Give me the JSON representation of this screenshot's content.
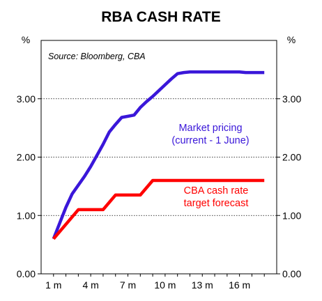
{
  "chart_data": {
    "type": "line",
    "title": "RBA CASH RATE",
    "y_unit_left": "%",
    "y_unit_right": "%",
    "source": "Source: Bloomberg, CBA",
    "x_tick_labels": [
      "1 m",
      "4 m",
      "7 m",
      "10 m",
      "13 m",
      "16 m"
    ],
    "x_ticks": [
      1,
      4,
      7,
      10,
      13,
      16
    ],
    "xlim": [
      0,
      19
    ],
    "y_tick_labels": [
      "0.00",
      "1.00",
      "2.00",
      "3.00"
    ],
    "y_ticks": [
      0,
      1,
      2,
      3
    ],
    "ylim": [
      0,
      4
    ],
    "grid": "horizontal dotted at 1, 2, 3",
    "series": [
      {
        "name": "Market pricing (current - 1 June)",
        "color": "#3a17d9",
        "x": [
          1,
          1.5,
          2,
          2.5,
          3,
          3.5,
          4,
          4.5,
          5,
          5.5,
          6,
          6.5,
          7,
          7.5,
          8,
          8.5,
          9,
          9.5,
          10,
          10.5,
          11,
          11.5,
          12,
          12.5,
          13,
          13.5,
          14,
          14.5,
          15,
          15.5,
          16,
          16.5,
          17,
          17.5,
          18
        ],
        "values": [
          0.6,
          0.87,
          1.14,
          1.37,
          1.52,
          1.67,
          1.84,
          2.03,
          2.22,
          2.43,
          2.56,
          2.68,
          2.7,
          2.72,
          2.85,
          2.95,
          3.04,
          3.14,
          3.24,
          3.34,
          3.43,
          3.45,
          3.46,
          3.46,
          3.46,
          3.46,
          3.46,
          3.46,
          3.46,
          3.46,
          3.46,
          3.45,
          3.45,
          3.45,
          3.45
        ],
        "label_lines": [
          "Market pricing",
          "(current - 1 June)"
        ]
      },
      {
        "name": "CBA cash rate target forecast",
        "color": "#ff0000",
        "x": [
          1,
          3,
          4,
          5,
          6,
          7,
          8,
          9,
          10,
          11,
          12,
          13,
          14,
          15,
          16,
          17,
          18
        ],
        "values": [
          0.6,
          1.1,
          1.1,
          1.1,
          1.35,
          1.35,
          1.35,
          1.6,
          1.6,
          1.6,
          1.6,
          1.6,
          1.6,
          1.6,
          1.6,
          1.6,
          1.6
        ],
        "label_lines": [
          "CBA cash rate",
          "target forecast"
        ]
      }
    ]
  }
}
